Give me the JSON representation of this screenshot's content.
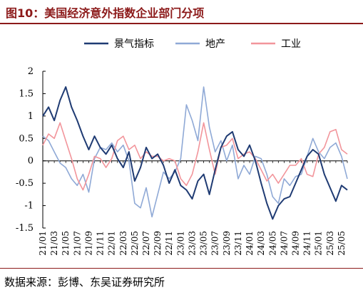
{
  "figure": {
    "title": "图10：美国经济意外指数企业部门分项",
    "source": "数据来源：彭博、东吴证券研究所"
  },
  "colors": {
    "accent": "#8c1a1a"
  },
  "chart_data": {
    "type": "line",
    "title": "",
    "xlabel": "",
    "ylabel": "",
    "ylim": [
      -1.5,
      2
    ],
    "yticks": [
      -1.5,
      -1,
      -0.5,
      0,
      0.5,
      1,
      1.5,
      2
    ],
    "ytick_labels": [
      "-1.5",
      "-1",
      "-0.5",
      "0",
      "0.5",
      "1",
      "1.5",
      "2"
    ],
    "x_start": "21/01",
    "x_end": "25/06",
    "xtick_labels": [
      "21/01",
      "21/03",
      "21/05",
      "21/07",
      "21/09",
      "21/11",
      "22/01",
      "22/03",
      "22/05",
      "22/07",
      "22/09",
      "22/11",
      "23/01",
      "23/03",
      "23/05",
      "23/07",
      "23/09",
      "23/11",
      "24/01",
      "24/03",
      "24/05",
      "24/07",
      "24/09",
      "24/11",
      "25/01",
      "25/03",
      "25/05"
    ],
    "legend_position": "top",
    "grid": false,
    "series": [
      {
        "name": "景气指标",
        "color": "#1f3b73",
        "width": 2,
        "points": [
          [
            "21/01",
            1.0
          ],
          [
            "21/02",
            1.2
          ],
          [
            "21/03",
            0.9
          ],
          [
            "21/04",
            1.35
          ],
          [
            "21/05",
            1.65
          ],
          [
            "21/06",
            1.2
          ],
          [
            "21/07",
            0.9
          ],
          [
            "21/08",
            0.55
          ],
          [
            "21/09",
            0.25
          ],
          [
            "21/10",
            0.55
          ],
          [
            "21/11",
            0.3
          ],
          [
            "21/12",
            0.15
          ],
          [
            "22/01",
            0.35
          ],
          [
            "22/02",
            0.05
          ],
          [
            "22/03",
            -0.15
          ],
          [
            "22/04",
            0.2
          ],
          [
            "22/05",
            -0.45
          ],
          [
            "22/06",
            -0.15
          ],
          [
            "22/07",
            0.3
          ],
          [
            "22/08",
            0.05
          ],
          [
            "22/09",
            0.15
          ],
          [
            "22/10",
            -0.1
          ],
          [
            "22/11",
            -0.5
          ],
          [
            "22/12",
            -0.2
          ],
          [
            "23/01",
            -0.55
          ],
          [
            "23/02",
            -0.65
          ],
          [
            "23/03",
            -0.85
          ],
          [
            "23/04",
            -0.45
          ],
          [
            "23/05",
            -0.3
          ],
          [
            "23/06",
            -0.75
          ],
          [
            "23/07",
            -0.2
          ],
          [
            "23/08",
            0.3
          ],
          [
            "23/09",
            0.55
          ],
          [
            "23/10",
            0.65
          ],
          [
            "23/11",
            0.25
          ],
          [
            "23/12",
            0.1
          ],
          [
            "24/01",
            0.35
          ],
          [
            "24/02",
            0.0
          ],
          [
            "24/03",
            -0.5
          ],
          [
            "24/04",
            -0.95
          ],
          [
            "24/05",
            -1.3
          ],
          [
            "24/06",
            -1.0
          ],
          [
            "24/07",
            -0.85
          ],
          [
            "24/08",
            -0.8
          ],
          [
            "24/09",
            -0.5
          ],
          [
            "24/10",
            -0.2
          ],
          [
            "24/11",
            0.1
          ],
          [
            "24/12",
            0.25
          ],
          [
            "25/01",
            0.15
          ],
          [
            "25/02",
            -0.3
          ],
          [
            "25/03",
            -0.6
          ],
          [
            "25/04",
            -0.9
          ],
          [
            "25/05",
            -0.55
          ],
          [
            "25/06",
            -0.65
          ]
        ]
      },
      {
        "name": "地产",
        "color": "#8fa9d6",
        "width": 1.6,
        "points": [
          [
            "21/01",
            0.55
          ],
          [
            "21/02",
            0.45
          ],
          [
            "21/03",
            0.2
          ],
          [
            "21/04",
            -0.05
          ],
          [
            "21/05",
            -0.15
          ],
          [
            "21/06",
            -0.4
          ],
          [
            "21/07",
            -0.55
          ],
          [
            "21/08",
            -0.3
          ],
          [
            "21/09",
            -0.7
          ],
          [
            "21/10",
            0.05
          ],
          [
            "21/11",
            0.3
          ],
          [
            "21/12",
            0.25
          ],
          [
            "22/01",
            0.4
          ],
          [
            "22/02",
            0.2
          ],
          [
            "22/03",
            0.35
          ],
          [
            "22/04",
            0.0
          ],
          [
            "22/05",
            -0.95
          ],
          [
            "22/06",
            -1.05
          ],
          [
            "22/07",
            -0.6
          ],
          [
            "22/08",
            -1.25
          ],
          [
            "22/09",
            -0.75
          ],
          [
            "22/10",
            -0.25
          ],
          [
            "22/11",
            -0.4
          ],
          [
            "22/12",
            -0.25
          ],
          [
            "23/01",
            0.05
          ],
          [
            "23/02",
            1.25
          ],
          [
            "23/03",
            0.9
          ],
          [
            "23/04",
            0.45
          ],
          [
            "23/05",
            1.65
          ],
          [
            "23/06",
            0.75
          ],
          [
            "23/07",
            0.2
          ],
          [
            "23/08",
            0.45
          ],
          [
            "23/09",
            0.0
          ],
          [
            "23/10",
            0.35
          ],
          [
            "23/11",
            -0.4
          ],
          [
            "23/12",
            -0.1
          ],
          [
            "24/01",
            -0.3
          ],
          [
            "24/02",
            0.1
          ],
          [
            "24/03",
            0.05
          ],
          [
            "24/04",
            -0.3
          ],
          [
            "24/05",
            -0.8
          ],
          [
            "24/06",
            -0.95
          ],
          [
            "24/07",
            -0.4
          ],
          [
            "24/08",
            -0.55
          ],
          [
            "24/09",
            -0.35
          ],
          [
            "24/10",
            -0.3
          ],
          [
            "24/11",
            0.1
          ],
          [
            "24/12",
            0.5
          ],
          [
            "25/01",
            0.2
          ],
          [
            "25/02",
            0.05
          ],
          [
            "25/03",
            0.3
          ],
          [
            "25/04",
            0.4
          ],
          [
            "25/05",
            0.1
          ],
          [
            "25/06",
            -0.4
          ]
        ]
      },
      {
        "name": "工业",
        "color": "#f2959b",
        "width": 1.6,
        "points": [
          [
            "21/01",
            0.35
          ],
          [
            "21/02",
            0.6
          ],
          [
            "21/03",
            0.5
          ],
          [
            "21/04",
            0.85
          ],
          [
            "21/05",
            0.45
          ],
          [
            "21/06",
            0.05
          ],
          [
            "21/07",
            -0.4
          ],
          [
            "21/08",
            -0.65
          ],
          [
            "21/09",
            -0.3
          ],
          [
            "21/10",
            0.1
          ],
          [
            "21/11",
            0.05
          ],
          [
            "21/12",
            -0.15
          ],
          [
            "22/01",
            0.05
          ],
          [
            "22/02",
            0.45
          ],
          [
            "22/03",
            0.55
          ],
          [
            "22/04",
            0.25
          ],
          [
            "22/05",
            0.35
          ],
          [
            "22/06",
            0.05
          ],
          [
            "22/07",
            0.2
          ],
          [
            "22/08",
            0.1
          ],
          [
            "22/09",
            0.1
          ],
          [
            "22/10",
            0.0
          ],
          [
            "22/11",
            0.05
          ],
          [
            "22/12",
            0.0
          ],
          [
            "23/01",
            -0.4
          ],
          [
            "23/02",
            -0.55
          ],
          [
            "23/03",
            -0.3
          ],
          [
            "23/04",
            0.2
          ],
          [
            "23/05",
            0.85
          ],
          [
            "23/06",
            0.25
          ],
          [
            "23/07",
            -0.3
          ],
          [
            "23/08",
            0.3
          ],
          [
            "23/09",
            0.35
          ],
          [
            "23/10",
            0.5
          ],
          [
            "23/11",
            0.05
          ],
          [
            "23/12",
            0.15
          ],
          [
            "24/01",
            0.2
          ],
          [
            "24/02",
            0.05
          ],
          [
            "24/03",
            -0.2
          ],
          [
            "24/04",
            -0.45
          ],
          [
            "24/05",
            -0.3
          ],
          [
            "24/06",
            -0.5
          ],
          [
            "24/07",
            -0.3
          ],
          [
            "24/08",
            -0.1
          ],
          [
            "24/09",
            -0.1
          ],
          [
            "24/10",
            0.05
          ],
          [
            "24/11",
            -0.3
          ],
          [
            "24/12",
            -0.35
          ],
          [
            "25/01",
            0.15
          ],
          [
            "25/02",
            0.3
          ],
          [
            "25/03",
            0.65
          ],
          [
            "25/04",
            0.7
          ],
          [
            "25/05",
            0.25
          ],
          [
            "25/06",
            0.15
          ]
        ]
      }
    ]
  }
}
